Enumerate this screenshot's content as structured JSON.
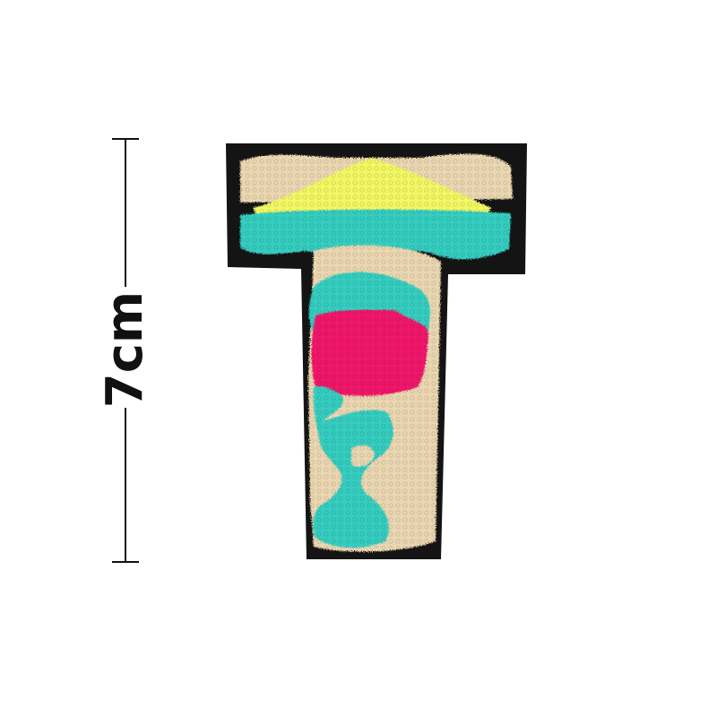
{
  "dimension": {
    "label": "7cm"
  },
  "patch": {
    "letter_shape": "T",
    "colors": {
      "backing": "#141414",
      "cream": "#ead6b0",
      "yellow": "#f2f764",
      "turquoise": "#35cdbf",
      "pink": "#f0176a"
    }
  }
}
